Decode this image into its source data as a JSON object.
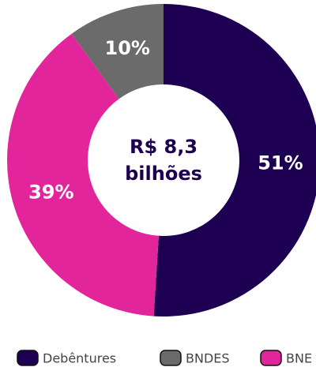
{
  "chart_data": {
    "type": "donut",
    "center_text": [
      "R$ 8,3",
      "bilhões"
    ],
    "categories": [
      "Debêntures",
      "BNDES",
      "BNE"
    ],
    "values": [
      51,
      10,
      39
    ],
    "value_labels": [
      "51%",
      "10%",
      "39%"
    ],
    "colors": [
      "#1e0053",
      "#6b6b6b",
      "#e3259b"
    ],
    "slice_order": [
      0,
      2,
      1
    ],
    "legend": "bottom"
  }
}
